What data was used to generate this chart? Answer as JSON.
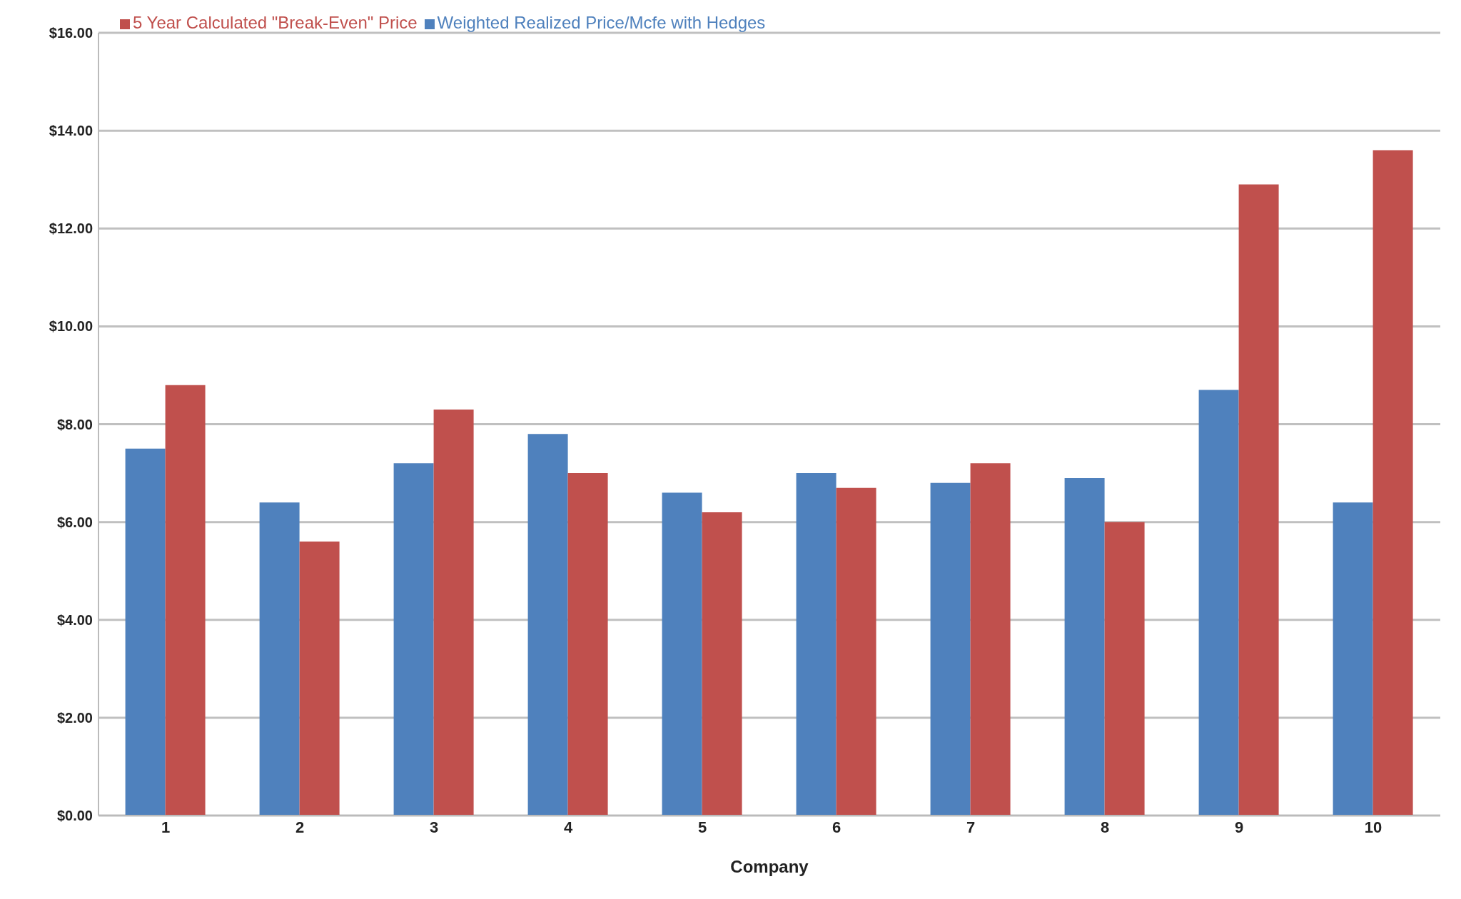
{
  "chart_data": {
    "type": "bar",
    "xlabel": "Company",
    "categories": [
      "1",
      "2",
      "3",
      "4",
      "5",
      "6",
      "7",
      "8",
      "9",
      "10"
    ],
    "series": [
      {
        "name": "Weighted Realized Price/Mcfe with Hedges",
        "color": "#4f81bd",
        "values": [
          7.5,
          6.4,
          7.2,
          7.8,
          6.6,
          7.0,
          6.8,
          6.9,
          8.7,
          6.4
        ]
      },
      {
        "name": "5 Year Calculated  \"Break-Even\" Price",
        "color": "#c0504d",
        "values": [
          8.8,
          5.6,
          8.3,
          7.0,
          6.2,
          6.7,
          7.2,
          6.0,
          12.9,
          13.6
        ]
      }
    ],
    "ylim": [
      0,
      16
    ],
    "yticks": [
      {
        "value": 0,
        "label": "$0.00"
      },
      {
        "value": 2,
        "label": "$2.00"
      },
      {
        "value": 4,
        "label": "$4.00"
      },
      {
        "value": 6,
        "label": "$6.00"
      },
      {
        "value": 8,
        "label": "$8.00"
      },
      {
        "value": 10,
        "label": "$10.00"
      },
      {
        "value": 12,
        "label": "$12.00"
      },
      {
        "value": 14,
        "label": "$14.00"
      },
      {
        "value": 16,
        "label": "$16.00"
      }
    ],
    "grid": "y",
    "legend": "top left"
  }
}
